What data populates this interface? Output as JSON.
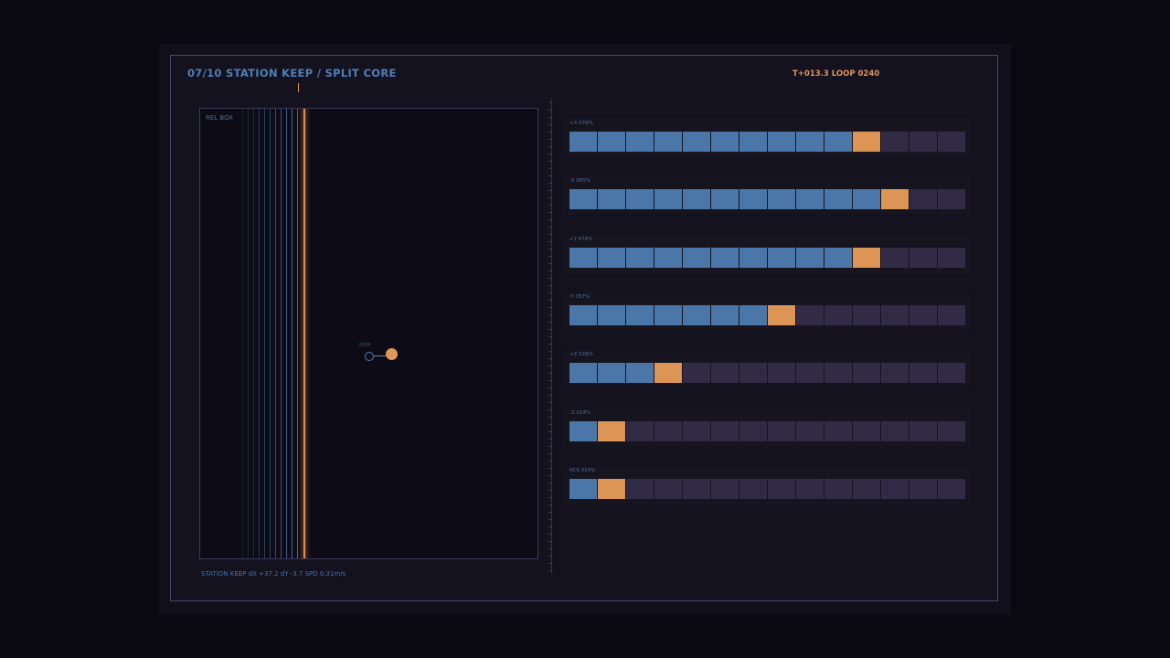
{
  "header": {
    "title": "07/10 STATION KEEP / SPLIT CORE",
    "loop": "T+013.3 LOOP 0240"
  },
  "relbox": {
    "label": "REL BOX",
    "keep_label": "KEEP"
  },
  "status": "STATION KEEP  dX +37.2  dY -3.7  SPD 0.31m/s",
  "colors": {
    "on": "#4a77a8",
    "active": "#dd9555",
    "off": "#312b45"
  },
  "thrusters": [
    {
      "label": "+X 078%",
      "active_index": 10
    },
    {
      "label": "-X 085%",
      "active_index": 11
    },
    {
      "label": "+Y 078%",
      "active_index": 10
    },
    {
      "label": "-Y 057%",
      "active_index": 7
    },
    {
      "label": "+Z 028%",
      "active_index": 3
    },
    {
      "label": "-Z 014%",
      "active_index": 1
    },
    {
      "label": "RCS 014%",
      "active_index": 1
    }
  ],
  "cells_per_row": 14
}
